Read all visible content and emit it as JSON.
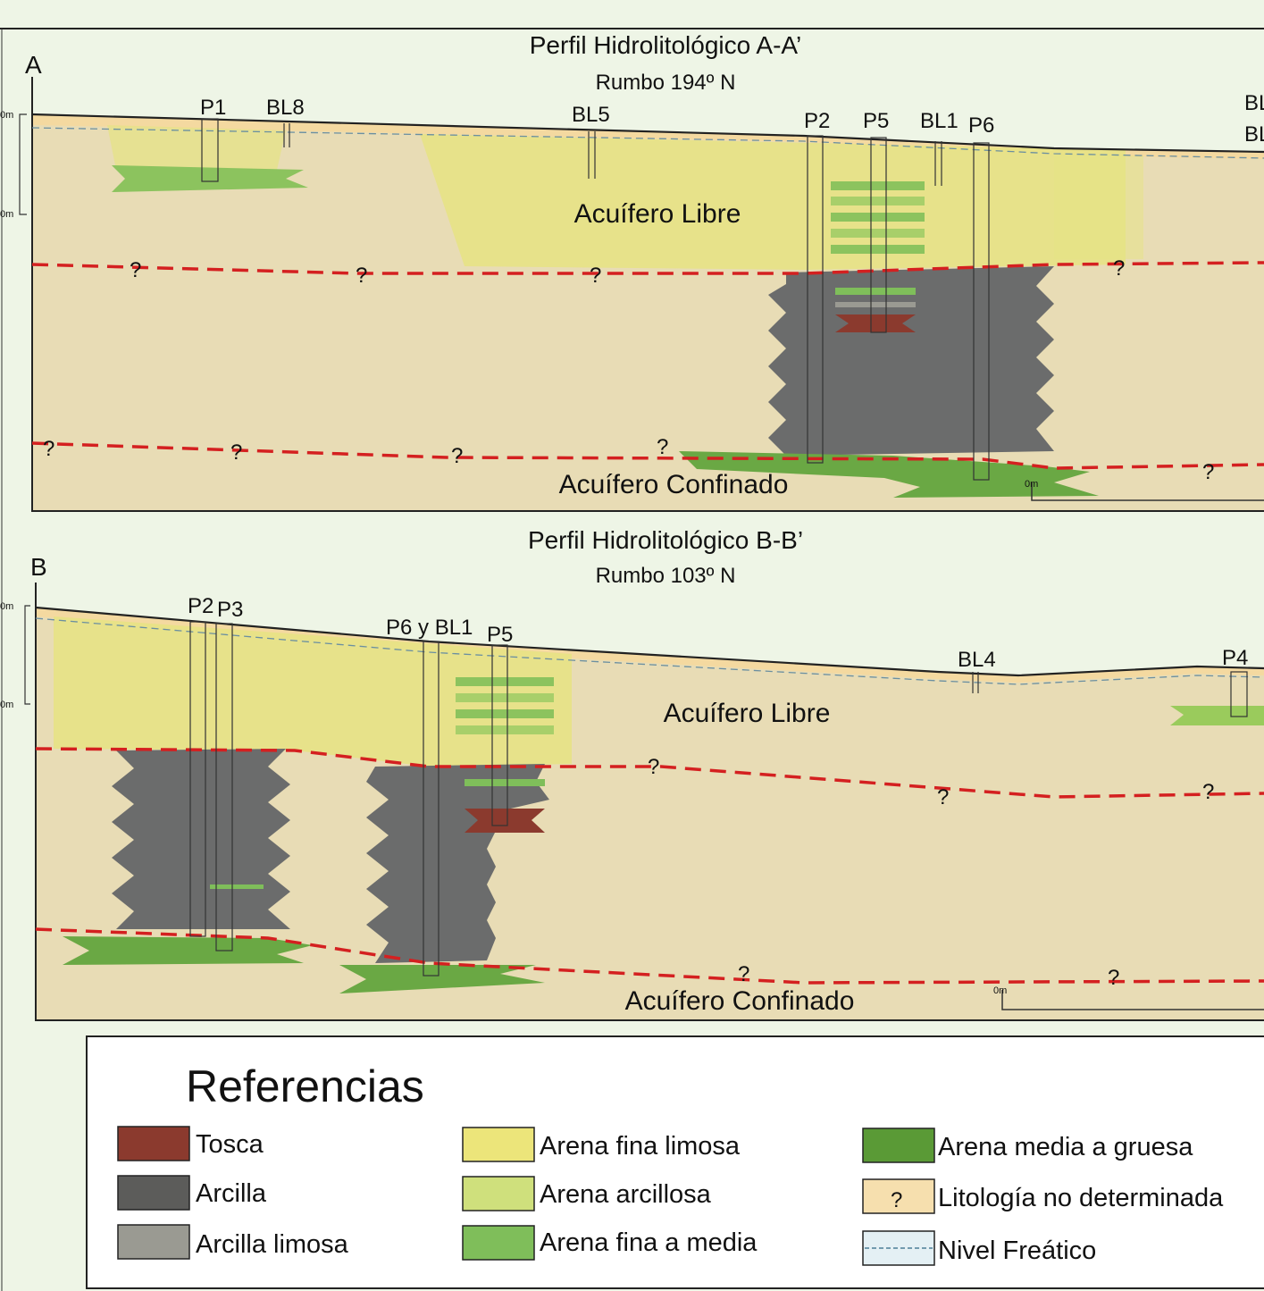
{
  "section_a": {
    "letter": "A",
    "title": "Perfil Hidrolitológico A-A’",
    "subtitle": "Rumbo 194º N",
    "wells": [
      "P1",
      "BL8",
      "BL5",
      "P2",
      "P5",
      "BL1",
      "P6"
    ],
    "edge_labels": [
      "BL",
      "BL"
    ],
    "aquifer_free": "Acuífero Libre",
    "aquifer_confined": "Acuífero Confinado",
    "scale_top": "0m",
    "scale_mid": "0m",
    "scale_zero": "0m",
    "question": "?"
  },
  "section_b": {
    "letter": "B",
    "title": "Perfil Hidrolitológico B-B’",
    "subtitle": "Rumbo 103º N",
    "wells": [
      "P2",
      "P3",
      "P6 y BL1",
      "P5",
      "BL4",
      "P4"
    ],
    "aquifer_free": "Acuífero Libre",
    "aquifer_confined": "Acuífero Confinado",
    "scale_top": "0m",
    "scale_mid": "0m",
    "scale_zero": "0m",
    "question": "?"
  },
  "legend": {
    "title": "Referencias",
    "items": [
      {
        "label": "Tosca",
        "color": "#8b3a2e"
      },
      {
        "label": "Arcilla",
        "color": "#5c5c5a"
      },
      {
        "label": "Arcilla limosa",
        "color": "#9a9a92"
      },
      {
        "label": "Arena fina limosa",
        "color": "#ece57a"
      },
      {
        "label": "Arena arcillosa",
        "color": "#cfe07c"
      },
      {
        "label": "Arena fina a media",
        "color": "#7fbe5a"
      },
      {
        "label": "Arena media a gruesa",
        "color": "#5a9a36"
      },
      {
        "label": "Litología no determinada",
        "color": "#f6dfae",
        "symbol": "?"
      },
      {
        "label": "Nivel Freático",
        "color": "#e4f0f4"
      }
    ]
  },
  "colors": {
    "background": "#eef5e6",
    "undetermined": "#e8dcb5",
    "sand_silt": "#e9e58a",
    "clay": "#6b6c6c",
    "boundary": "#d42020"
  }
}
